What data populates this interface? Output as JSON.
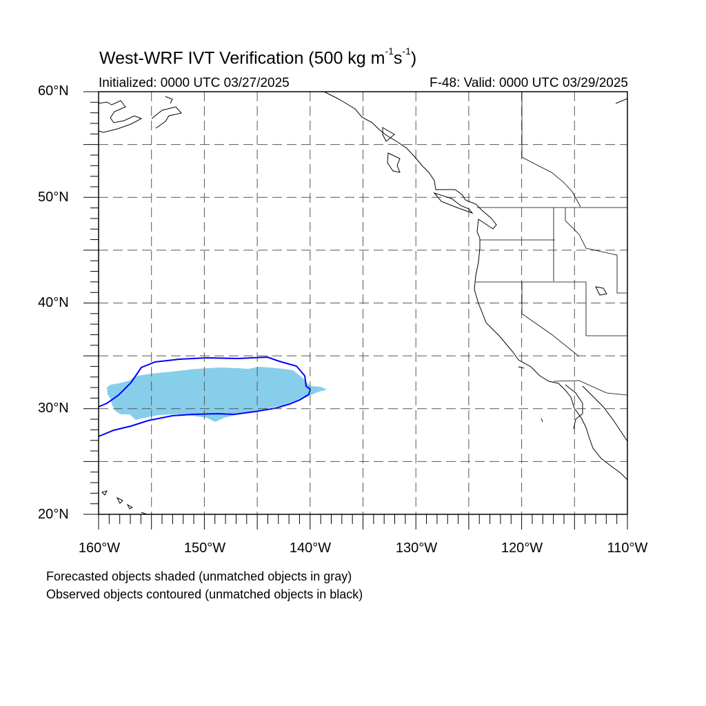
{
  "map": {
    "title_main": "West-WRF IVT Verification (500 kg m",
    "title_exp1": "-1",
    "title_mid": "s",
    "title_exp2": "-1",
    "title_end": ")",
    "init_label": "Initialized: 0000 UTC 03/27/2025",
    "valid_label": "F-48: Valid: 0000 UTC 03/29/2025",
    "lon_range": [
      -160,
      -110
    ],
    "lat_range": [
      20,
      60
    ],
    "y_ticks": [
      "60°N",
      "50°N",
      "40°N",
      "30°N",
      "20°N"
    ],
    "x_ticks": [
      "160°W",
      "150°W",
      "140°W",
      "130°W",
      "120°W",
      "110°W"
    ],
    "forecast_fill_color": "#87ceeb",
    "observed_contour_color": "#0000ff",
    "footnote_1": "Forecasted objects shaded (unmatched objects in gray)",
    "footnote_2": "Observed objects contoured (unmatched objects in black)"
  }
}
